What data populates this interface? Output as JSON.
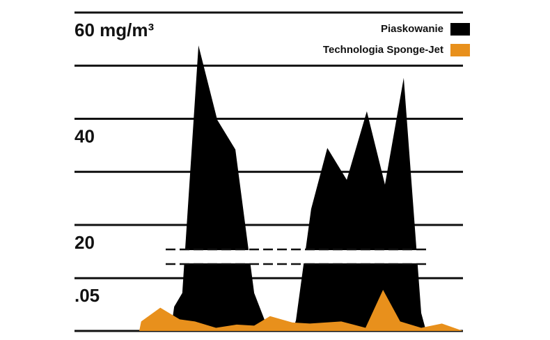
{
  "chart_data": {
    "type": "area",
    "xlim": [
      0,
      100
    ],
    "ylim": [
      0,
      60
    ],
    "ybreak": [
      0.07,
      15
    ],
    "yticks": [
      {
        "value": 0.05,
        "label": ".05"
      },
      20,
      {
        "value": 30,
        "label": null
      },
      40,
      {
        "value": 50,
        "label": null
      },
      {
        "value": 60,
        "label": "60 mg/m³"
      }
    ],
    "grid": true,
    "legend": "top-right",
    "series": [
      {
        "name": "Piaskowanie",
        "color": "#000000",
        "x": [
          9.7,
          10.8,
          13.3,
          18.3,
          24.1,
          29.7,
          35.5,
          39.4,
          43.0,
          47.3,
          48.4,
          53.1,
          58.1,
          64.1,
          70.3,
          75.9,
          81.7,
          87.1,
          88.6
        ],
        "values": [
          0,
          0.023,
          0.036,
          53.8,
          39.8,
          34.2,
          0.036,
          0.005,
          0,
          0,
          0.01,
          23.0,
          34.5,
          28.5,
          41.4,
          27.6,
          47.7,
          0.017,
          0
        ]
      },
      {
        "name": "Technologia Sponge-Jet",
        "color": "#e8901c",
        "x": [
          0,
          0.6,
          6.5,
          12.5,
          17.2,
          23.7,
          30.1,
          35.5,
          40.4,
          47.3,
          52.7,
          62.4,
          69.9,
          75.3,
          80.6,
          87.1,
          93.5,
          100
        ],
        "values": [
          0,
          0.009,
          0.022,
          0.011,
          0.009,
          0.003,
          0.006,
          0.005,
          0.014,
          0.008,
          0.007,
          0.009,
          0.003,
          0.039,
          0.009,
          0.003,
          0.007,
          0
        ]
      }
    ]
  }
}
